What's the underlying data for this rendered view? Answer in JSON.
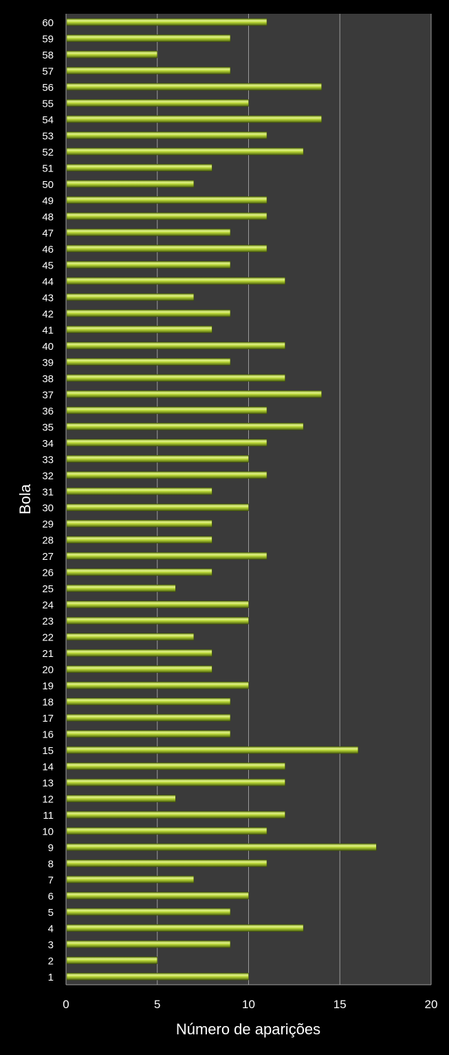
{
  "chart_data": {
    "type": "bar",
    "orientation": "horizontal",
    "xlabel": "Número de aparições",
    "ylabel": "Bola",
    "xlim": [
      0,
      20
    ],
    "xticks": [
      0,
      5,
      10,
      15,
      20
    ],
    "grid": true,
    "colors": {
      "background": "#000000",
      "plot_area": "#3a3a3a",
      "bar": "#b5d334",
      "grid": "#9a9a9a"
    },
    "categories": [
      "1",
      "2",
      "3",
      "4",
      "5",
      "6",
      "7",
      "8",
      "9",
      "10",
      "11",
      "12",
      "13",
      "14",
      "15",
      "16",
      "17",
      "18",
      "19",
      "20",
      "21",
      "22",
      "23",
      "24",
      "25",
      "26",
      "27",
      "28",
      "29",
      "30",
      "31",
      "32",
      "33",
      "34",
      "35",
      "36",
      "37",
      "38",
      "39",
      "40",
      "41",
      "42",
      "43",
      "44",
      "45",
      "46",
      "47",
      "48",
      "49",
      "50",
      "51",
      "52",
      "53",
      "54",
      "55",
      "56",
      "57",
      "58",
      "59",
      "60"
    ],
    "values": [
      10,
      5,
      9,
      13,
      9,
      10,
      7,
      11,
      17,
      11,
      12,
      6,
      12,
      12,
      16,
      9,
      9,
      9,
      10,
      8,
      8,
      7,
      10,
      10,
      6,
      8,
      11,
      8,
      8,
      10,
      8,
      11,
      10,
      11,
      13,
      11,
      14,
      12,
      9,
      12,
      8,
      9,
      7,
      12,
      9,
      11,
      9,
      11,
      11,
      7,
      8,
      13,
      11,
      14,
      10,
      14,
      9,
      5,
      9,
      11
    ]
  }
}
